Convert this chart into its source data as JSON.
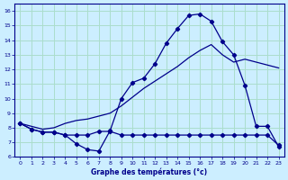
{
  "xlabel": "Graphe des températures (°c)",
  "xlim": [
    -0.5,
    23.5
  ],
  "ylim": [
    6,
    16.5
  ],
  "yticks": [
    6,
    7,
    8,
    9,
    10,
    11,
    12,
    13,
    14,
    15,
    16
  ],
  "xticks": [
    0,
    1,
    2,
    3,
    4,
    5,
    6,
    7,
    8,
    9,
    10,
    11,
    12,
    13,
    14,
    15,
    16,
    17,
    18,
    19,
    20,
    21,
    22,
    23
  ],
  "bg_color": "#cceeff",
  "grid_color": "#aaddcc",
  "line_color": "#00008b",
  "line1_y": [
    8.3,
    7.9,
    7.7,
    7.7,
    7.5,
    6.9,
    6.5,
    6.4,
    7.8,
    10.0,
    11.1,
    11.4,
    12.4,
    13.8,
    14.8,
    15.7,
    15.8,
    15.3,
    13.9,
    13.0,
    10.9,
    8.1,
    8.1,
    6.7
  ],
  "line2_y": [
    8.3,
    7.9,
    7.7,
    7.7,
    7.5,
    7.5,
    7.5,
    7.75,
    7.75,
    7.5,
    7.5,
    7.5,
    7.5,
    7.5,
    7.5,
    7.5,
    7.5,
    7.5,
    7.5,
    7.5,
    7.5,
    7.5,
    7.5,
    6.8
  ],
  "line3_y": [
    8.3,
    8.1,
    7.9,
    8.0,
    8.3,
    8.5,
    8.6,
    8.8,
    9.0,
    9.5,
    10.1,
    10.7,
    11.2,
    11.7,
    12.2,
    12.8,
    13.3,
    13.7,
    13.0,
    12.5,
    12.7,
    12.5,
    12.3,
    12.1
  ]
}
